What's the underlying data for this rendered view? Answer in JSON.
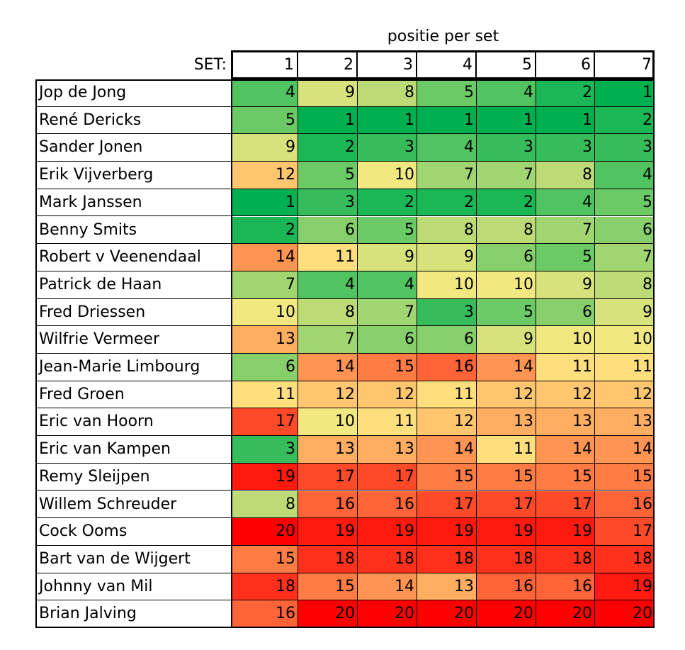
{
  "caption": "positie per set",
  "set_label": "SET:",
  "sets": [
    "1",
    "2",
    "3",
    "4",
    "5",
    "6",
    "7"
  ],
  "rows": [
    {
      "name": "Jop de Jong",
      "values": [
        4,
        9,
        8,
        5,
        4,
        2,
        1
      ]
    },
    {
      "name": "René Dericks",
      "values": [
        5,
        1,
        1,
        1,
        1,
        1,
        2
      ]
    },
    {
      "name": "Sander Jonen",
      "values": [
        9,
        2,
        3,
        4,
        3,
        3,
        3
      ]
    },
    {
      "name": "Erik Vijverberg",
      "values": [
        12,
        5,
        10,
        7,
        7,
        8,
        4
      ]
    },
    {
      "name": "Mark Janssen",
      "values": [
        1,
        3,
        2,
        2,
        2,
        4,
        5
      ]
    },
    {
      "name": "Benny Smits",
      "values": [
        2,
        6,
        5,
        8,
        8,
        7,
        6
      ]
    },
    {
      "name": "Robert v Veenendaal",
      "values": [
        14,
        11,
        9,
        9,
        6,
        5,
        7
      ]
    },
    {
      "name": "Patrick de Haan",
      "values": [
        7,
        4,
        4,
        10,
        10,
        9,
        8
      ]
    },
    {
      "name": "Fred Driessen",
      "values": [
        10,
        8,
        7,
        3,
        5,
        6,
        9
      ]
    },
    {
      "name": "Wilfrie Vermeer",
      "values": [
        13,
        7,
        6,
        6,
        9,
        10,
        10
      ]
    },
    {
      "name": "Jean-Marie Limbourg",
      "values": [
        6,
        14,
        15,
        16,
        14,
        11,
        11
      ]
    },
    {
      "name": "Fred Groen",
      "values": [
        11,
        12,
        12,
        11,
        12,
        12,
        12
      ]
    },
    {
      "name": "Eric van Hoorn",
      "values": [
        17,
        10,
        11,
        12,
        13,
        13,
        13
      ]
    },
    {
      "name": "Eric van Kampen",
      "values": [
        3,
        13,
        13,
        14,
        11,
        14,
        14
      ]
    },
    {
      "name": "Remy Sleijpen",
      "values": [
        19,
        17,
        17,
        15,
        15,
        15,
        15
      ]
    },
    {
      "name": "Willem Schreuder",
      "values": [
        8,
        16,
        16,
        17,
        17,
        17,
        16
      ]
    },
    {
      "name": "Cock Ooms",
      "values": [
        20,
        19,
        19,
        19,
        19,
        19,
        17
      ]
    },
    {
      "name": "Bart van de Wijgert",
      "values": [
        15,
        18,
        18,
        18,
        18,
        18,
        18
      ]
    },
    {
      "name": "Johnny van Mil",
      "values": [
        18,
        15,
        14,
        13,
        16,
        16,
        19
      ]
    },
    {
      "name": "Brian Jalving",
      "values": [
        16,
        20,
        20,
        20,
        20,
        20,
        20
      ]
    }
  ],
  "color_scale": {
    "min": 1,
    "mid": 10.5,
    "max": 20,
    "low_color": "#00b050",
    "mid_color": "#ffeb84",
    "high_color": "#ff0000"
  }
}
